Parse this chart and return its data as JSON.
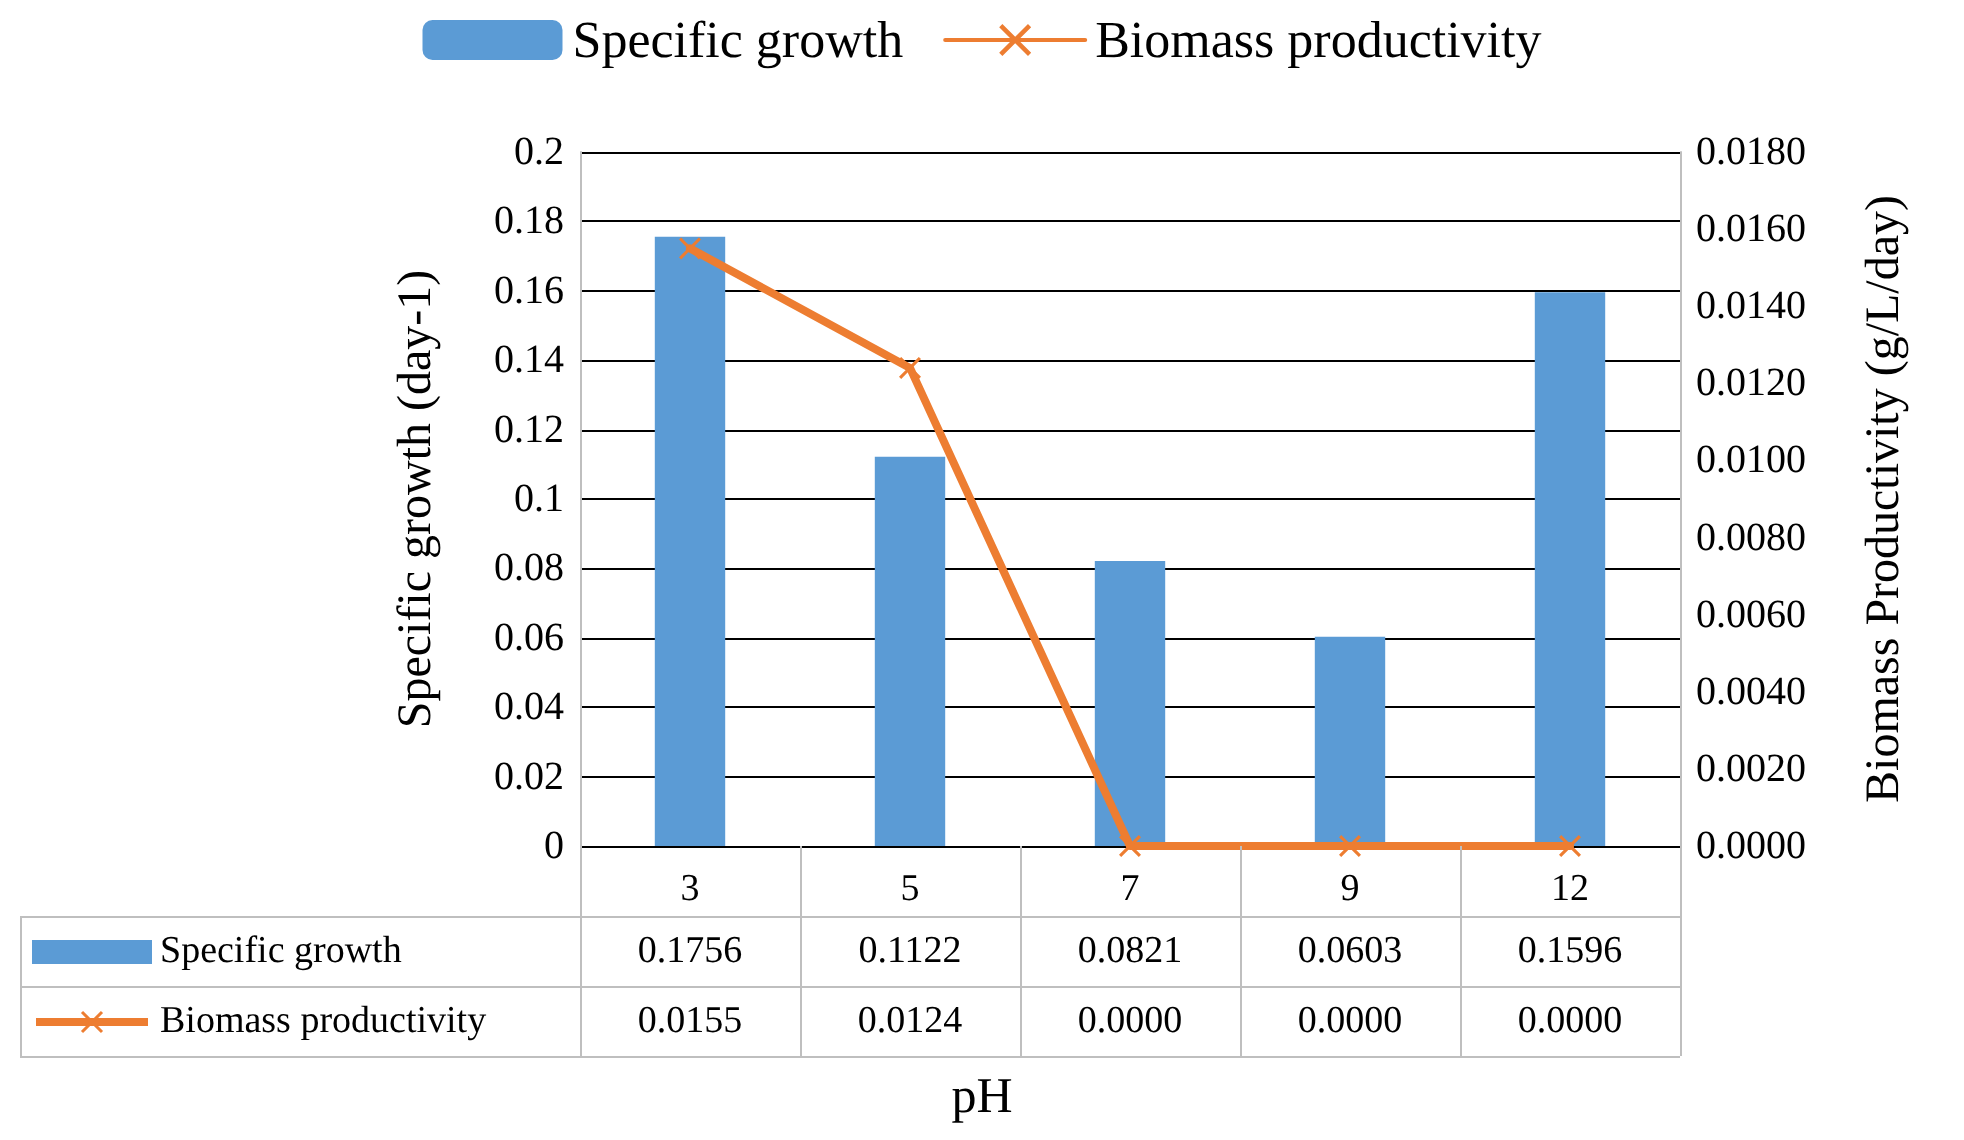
{
  "chart_data": {
    "type": "bar",
    "xlabel": "pH",
    "ylabel": "Specific growth (day-1)",
    "y2label": "Biomass Productivity (g/L/day)",
    "categories": [
      "3",
      "5",
      "7",
      "9",
      "12"
    ],
    "series": [
      {
        "name": "Specific growth",
        "color": "#5b9bd5",
        "values": [
          0.1756,
          0.1122,
          0.0821,
          0.0603,
          0.1596
        ],
        "value_labels": [
          "0.1756",
          "0.1122",
          "0.0821",
          "0.0603",
          "0.1596"
        ]
      },
      {
        "name": "Biomass productivity",
        "type": "line",
        "axis": "y2",
        "color": "#ed7d31",
        "marker": "cross",
        "values": [
          0.0155,
          0.0124,
          0,
          0,
          0
        ],
        "value_labels": [
          "0.0155",
          "0.0124",
          "0.0000",
          "0.0000",
          "0.0000"
        ]
      }
    ],
    "ylim": [
      0,
      0.2
    ],
    "yticks": [
      0,
      0.02,
      0.04,
      0.06,
      0.08,
      0.1,
      0.12,
      0.14,
      0.16,
      0.18,
      0.2
    ],
    "y2lim": [
      0,
      0.018
    ],
    "y2ticks": [
      {
        "value": 0,
        "label": "0.0000"
      },
      {
        "value": 0.002,
        "label": "0.0020"
      },
      {
        "value": 0.004,
        "label": "0.0040"
      },
      {
        "value": 0.006,
        "label": "0.0060"
      },
      {
        "value": 0.008,
        "label": "0.0080"
      },
      {
        "value": 0.01,
        "label": "0.0100"
      },
      {
        "value": 0.012,
        "label": "0.0120"
      },
      {
        "value": 0.014,
        "label": "0.0140"
      },
      {
        "value": 0.016,
        "label": "0.0160"
      },
      {
        "value": 0.018,
        "label": "0.0180"
      }
    ],
    "grid": "y",
    "legend": "top"
  }
}
